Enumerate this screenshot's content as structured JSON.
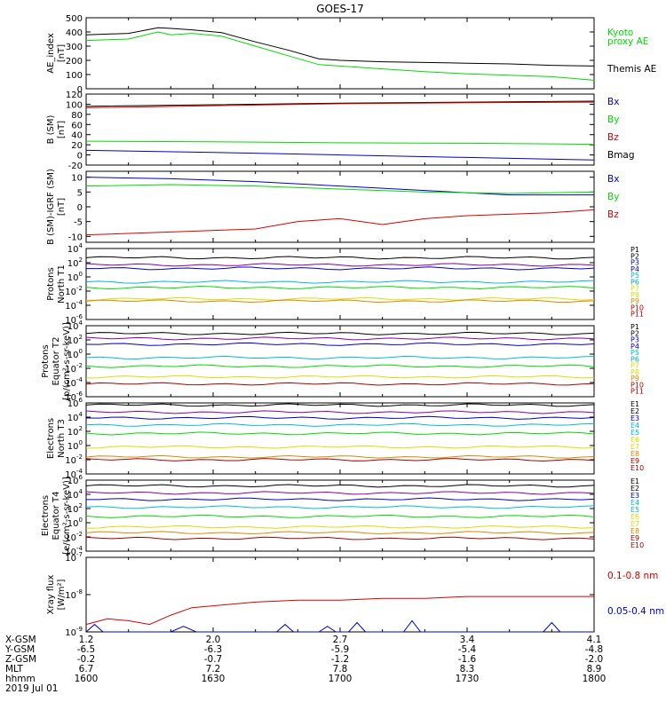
{
  "title": "GOES-17",
  "x_axis": {
    "ticks": [
      "1600",
      "1630",
      "1700",
      "1730",
      "1800"
    ],
    "rows": [
      {
        "label": "X-GSM",
        "values": [
          "1.2",
          "2.0",
          "2.7",
          "3.4",
          "4.1"
        ]
      },
      {
        "label": "Y-GSM",
        "values": [
          "-6.5",
          "-6.3",
          "-5.9",
          "-5.4",
          "-4.8"
        ]
      },
      {
        "label": "Z-GSM",
        "values": [
          "-0.2",
          "-0.7",
          "-1.2",
          "-1.6",
          "-2.0"
        ]
      },
      {
        "label": "MLT",
        "values": [
          "6.7",
          "7.2",
          "7.8",
          "8.3",
          "8.9"
        ]
      },
      {
        "label": "hhmm",
        "values": [
          "1600",
          "1630",
          "1700",
          "1730",
          "1800"
        ]
      }
    ],
    "date": "2019 Jul 01"
  },
  "colors": {
    "black": "#000000",
    "green": "#00dd00",
    "blue": "#0000cc",
    "red": "#dd0000",
    "navy": "#000080",
    "purple": "#8800aa",
    "cyan": "#00bbdd",
    "teal": "#00aaaa",
    "lime": "#66dd00",
    "yellow": "#dddd00",
    "orange": "#dd8800",
    "darkred": "#aa0000",
    "maroon": "#880000"
  },
  "chart_data": [
    {
      "type": "line",
      "ylabel": [
        "AE_index",
        "[nT]"
      ],
      "ylim": [
        0,
        500
      ],
      "yscale": "linear",
      "yticks": [
        0,
        100,
        200,
        300,
        400,
        500
      ],
      "legend": [
        {
          "label": "Kyoto",
          "color": "#00dd00"
        },
        {
          "label": "proxy AE",
          "color": "#00dd00"
        },
        {
          "label": "Themis AE",
          "color": "#000000"
        }
      ],
      "series": [
        {
          "name": "Themis AE",
          "color": "#000000",
          "x": [
            0,
            10,
            17,
            20,
            25,
            32,
            40,
            48,
            55,
            60,
            70,
            80,
            90,
            100,
            110,
            120
          ],
          "y": [
            380,
            390,
            430,
            425,
            415,
            395,
            330,
            270,
            210,
            200,
            190,
            185,
            180,
            175,
            165,
            160
          ]
        },
        {
          "name": "Kyoto proxy AE",
          "color": "#00dd00",
          "x": [
            0,
            10,
            17,
            20,
            25,
            32,
            40,
            48,
            55,
            60,
            70,
            80,
            90,
            100,
            110,
            120
          ],
          "y": [
            340,
            350,
            400,
            380,
            390,
            370,
            300,
            230,
            170,
            160,
            140,
            120,
            105,
            95,
            85,
            60
          ]
        }
      ]
    },
    {
      "type": "line",
      "ylabel": [
        "B (SM)",
        "[nT]"
      ],
      "ylim": [
        -20,
        120
      ],
      "yscale": "linear",
      "yticks": [
        -20,
        0,
        20,
        40,
        60,
        80,
        100,
        120
      ],
      "legend": [
        {
          "label": "Bx",
          "color": "#0000cc"
        },
        {
          "label": "By",
          "color": "#00dd00"
        },
        {
          "label": "Bz",
          "color": "#dd0000"
        },
        {
          "label": "Bmag",
          "color": "#000000"
        }
      ],
      "series": [
        {
          "name": "Bmag",
          "color": "#000000",
          "x": [
            0,
            30,
            60,
            90,
            120
          ],
          "y": [
            96,
            99,
            102,
            104,
            106
          ]
        },
        {
          "name": "Bz",
          "color": "#dd0000",
          "x": [
            0,
            30,
            60,
            90,
            120
          ],
          "y": [
            93,
            97,
            101,
            103,
            104
          ]
        },
        {
          "name": "By",
          "color": "#00dd00",
          "x": [
            0,
            30,
            60,
            90,
            120
          ],
          "y": [
            27,
            26,
            24,
            23,
            21
          ]
        },
        {
          "name": "Bx",
          "color": "#0000cc",
          "x": [
            0,
            30,
            60,
            90,
            120
          ],
          "y": [
            9,
            5,
            0,
            -5,
            -10
          ]
        }
      ]
    },
    {
      "type": "line",
      "ylabel": [
        "B (SM)-IGRF (SM)",
        "[nT]"
      ],
      "ylim": [
        -12,
        12
      ],
      "yscale": "linear",
      "yticks": [
        -10,
        -5,
        0,
        5,
        10
      ],
      "legend": [
        {
          "label": "Bx",
          "color": "#0000cc"
        },
        {
          "label": "By",
          "color": "#00dd00"
        },
        {
          "label": "Bz",
          "color": "#dd0000"
        }
      ],
      "series": [
        {
          "name": "Bx",
          "color": "#0000cc",
          "x": [
            0,
            20,
            40,
            60,
            80,
            100,
            120
          ],
          "y": [
            10,
            9.5,
            8.5,
            7,
            5.5,
            4,
            4
          ]
        },
        {
          "name": "By",
          "color": "#00dd00",
          "x": [
            0,
            20,
            40,
            60,
            80,
            100,
            120
          ],
          "y": [
            7,
            7.5,
            7,
            6,
            5,
            4.5,
            5
          ]
        },
        {
          "name": "Bz",
          "color": "#dd0000",
          "x": [
            0,
            20,
            40,
            50,
            60,
            70,
            80,
            90,
            100,
            110,
            120
          ],
          "y": [
            -9.5,
            -8.5,
            -7.5,
            -5,
            -4,
            -6,
            -4,
            -3,
            -2.5,
            -2,
            -1
          ]
        }
      ]
    },
    {
      "type": "line",
      "ylabel": [
        "Protons",
        "North T1"
      ],
      "ylim": [
        -6,
        4
      ],
      "yscale": "log",
      "yticks": [
        -6,
        -4,
        -2,
        0,
        2,
        4
      ],
      "legend": [
        {
          "label": "P1",
          "color": "#000000"
        },
        {
          "label": "P2",
          "color": "#000000"
        },
        {
          "label": "P3",
          "color": "#0000cc"
        },
        {
          "label": "P4",
          "color": "#0000cc"
        },
        {
          "label": "P5",
          "color": "#00bbdd"
        },
        {
          "label": "P6",
          "color": "#00aaaa"
        },
        {
          "label": "P7",
          "color": "#dddd00"
        },
        {
          "label": "P8",
          "color": "#dddd00"
        },
        {
          "label": "P9",
          "color": "#dd8800"
        },
        {
          "label": "P10",
          "color": "#aa0000"
        },
        {
          "label": "P11",
          "color": "#aa0000"
        }
      ],
      "series": [
        {
          "name": "P1",
          "color": "#000000",
          "level": 2.7
        },
        {
          "name": "P2",
          "color": "#8800aa",
          "level": 1.7
        },
        {
          "name": "P3",
          "color": "#0000cc",
          "level": 1.2
        },
        {
          "name": "P4",
          "color": "#00bbdd",
          "level": -0.7
        },
        {
          "name": "P5",
          "color": "#00dd00",
          "level": -1.5
        },
        {
          "name": "P6",
          "color": "#dddd00",
          "level": -3.1
        },
        {
          "name": "P7",
          "color": "#dd8800",
          "level": -3.4
        }
      ]
    },
    {
      "type": "line",
      "ylabel": [
        "Protons",
        "Equator T2",
        "[p/(cm²-s-sr-keV)]"
      ],
      "ylim": [
        -6,
        4
      ],
      "yscale": "log",
      "yticks": [
        -6,
        -4,
        -2,
        0,
        2,
        4
      ],
      "legend": [
        {
          "label": "P1",
          "color": "#000000"
        },
        {
          "label": "P2",
          "color": "#000000"
        },
        {
          "label": "P3",
          "color": "#0000cc"
        },
        {
          "label": "P4",
          "color": "#0000cc"
        },
        {
          "label": "P5",
          "color": "#00bbdd"
        },
        {
          "label": "P6",
          "color": "#00aaaa"
        },
        {
          "label": "P7",
          "color": "#dddd00"
        },
        {
          "label": "P8",
          "color": "#dddd00"
        },
        {
          "label": "P9",
          "color": "#dd8800"
        },
        {
          "label": "P10",
          "color": "#aa0000"
        },
        {
          "label": "P11",
          "color": "#aa0000"
        }
      ],
      "series": [
        {
          "name": "P1",
          "color": "#000000",
          "level": 2.9
        },
        {
          "name": "P2",
          "color": "#8800aa",
          "level": 2.2
        },
        {
          "name": "P3",
          "color": "#0000cc",
          "level": 1.4
        },
        {
          "name": "P4",
          "color": "#00bbdd",
          "level": -0.5
        },
        {
          "name": "P5",
          "color": "#00dd00",
          "level": -1.7
        },
        {
          "name": "P6",
          "color": "#dddd00",
          "level": -3.2
        },
        {
          "name": "P7",
          "color": "#aa0000",
          "level": -4.2
        }
      ]
    },
    {
      "type": "line",
      "ylabel": [
        "Electrons",
        "North T3"
      ],
      "ylim": [
        -4,
        6
      ],
      "yscale": "log",
      "yticks": [
        -4,
        -2,
        0,
        2,
        4,
        6
      ],
      "legend": [
        {
          "label": "E1",
          "color": "#000000"
        },
        {
          "label": "E2",
          "color": "#000000"
        },
        {
          "label": "E3",
          "color": "#0000cc"
        },
        {
          "label": "E4",
          "color": "#00bbdd"
        },
        {
          "label": "E5",
          "color": "#00bbdd"
        },
        {
          "label": "E6",
          "color": "#dddd00"
        },
        {
          "label": "E7",
          "color": "#dddd00"
        },
        {
          "label": "E8",
          "color": "#dd8800"
        },
        {
          "label": "E9",
          "color": "#aa0000"
        },
        {
          "label": "E10",
          "color": "#aa0000"
        }
      ],
      "series": [
        {
          "name": "E1",
          "color": "#000000",
          "level": 5.7
        },
        {
          "name": "E2",
          "color": "#8800aa",
          "level": 4.7
        },
        {
          "name": "E3",
          "color": "#0000cc",
          "level": 3.9
        },
        {
          "name": "E4",
          "color": "#00bbdd",
          "level": 2.9
        },
        {
          "name": "E5",
          "color": "#00dd00",
          "level": 1.7
        },
        {
          "name": "E6",
          "color": "#dddd00",
          "level": -0.2
        },
        {
          "name": "E7",
          "color": "#dd8800",
          "level": -1.6
        },
        {
          "name": "E8",
          "color": "#aa0000",
          "level": -2.0
        }
      ]
    },
    {
      "type": "line",
      "ylabel": [
        "Electrons",
        "Equator T4",
        "[e/(cm²-s-sr-keV)]"
      ],
      "ylim": [
        -4,
        6
      ],
      "yscale": "log",
      "yticks": [
        -4,
        -2,
        0,
        2,
        4,
        6
      ],
      "legend": [
        {
          "label": "E1",
          "color": "#000000"
        },
        {
          "label": "E2",
          "color": "#000000"
        },
        {
          "label": "E3",
          "color": "#0000cc"
        },
        {
          "label": "E4",
          "color": "#00bbdd"
        },
        {
          "label": "E5",
          "color": "#00bbdd"
        },
        {
          "label": "E6",
          "color": "#dddd00"
        },
        {
          "label": "E7",
          "color": "#dddd00"
        },
        {
          "label": "E8",
          "color": "#dd8800"
        },
        {
          "label": "E9",
          "color": "#aa0000"
        },
        {
          "label": "E10",
          "color": "#aa0000"
        }
      ],
      "series": [
        {
          "name": "E1",
          "color": "#000000",
          "level": 5.2
        },
        {
          "name": "E2",
          "color": "#8800aa",
          "level": 4.2
        },
        {
          "name": "E3",
          "color": "#0000cc",
          "level": 3.3
        },
        {
          "name": "E4",
          "color": "#00bbdd",
          "level": 2.2
        },
        {
          "name": "E5",
          "color": "#00dd00",
          "level": 0.9
        },
        {
          "name": "E6",
          "color": "#dddd00",
          "level": -0.6
        },
        {
          "name": "E7",
          "color": "#dd8800",
          "level": -1.4
        },
        {
          "name": "E8",
          "color": "#aa0000",
          "level": -2.2
        }
      ]
    },
    {
      "type": "line",
      "ylabel": [
        "Xray flux",
        "[W/m²]"
      ],
      "ylim": [
        -9,
        -7
      ],
      "yscale": "log",
      "yticks": [
        -9,
        -8,
        -7
      ],
      "legend": [
        {
          "label": "0.1-0.8 nm",
          "color": "#dd0000"
        },
        {
          "label": "0.05-0.4 nm",
          "color": "#0000cc"
        }
      ],
      "series": [
        {
          "name": "0.1-0.8 nm",
          "color": "#dd0000",
          "x": [
            0,
            5,
            10,
            15,
            20,
            25,
            30,
            40,
            50,
            60,
            70,
            80,
            90,
            100,
            110,
            120
          ],
          "y": [
            -8.8,
            -8.65,
            -8.7,
            -8.8,
            -8.55,
            -8.35,
            -8.3,
            -8.2,
            -8.15,
            -8.15,
            -8.1,
            -8.1,
            -8.05,
            -8.05,
            -8.05,
            -8.05
          ]
        },
        {
          "name": "0.05-0.4 nm",
          "color": "#0000cc",
          "x": [
            0,
            2,
            4,
            20,
            23,
            26,
            45,
            47,
            49,
            55,
            57,
            59,
            62,
            64,
            66,
            75,
            77,
            79,
            108,
            110,
            112,
            120
          ],
          "y": [
            -9.0,
            -8.8,
            -9.0,
            -9.0,
            -8.85,
            -9.0,
            -9.0,
            -8.8,
            -9.0,
            -9.0,
            -8.85,
            -9.0,
            -9.0,
            -8.75,
            -9.0,
            -9.0,
            -8.7,
            -9.0,
            -9.0,
            -8.75,
            -9.0,
            -9.0
          ]
        }
      ]
    }
  ]
}
